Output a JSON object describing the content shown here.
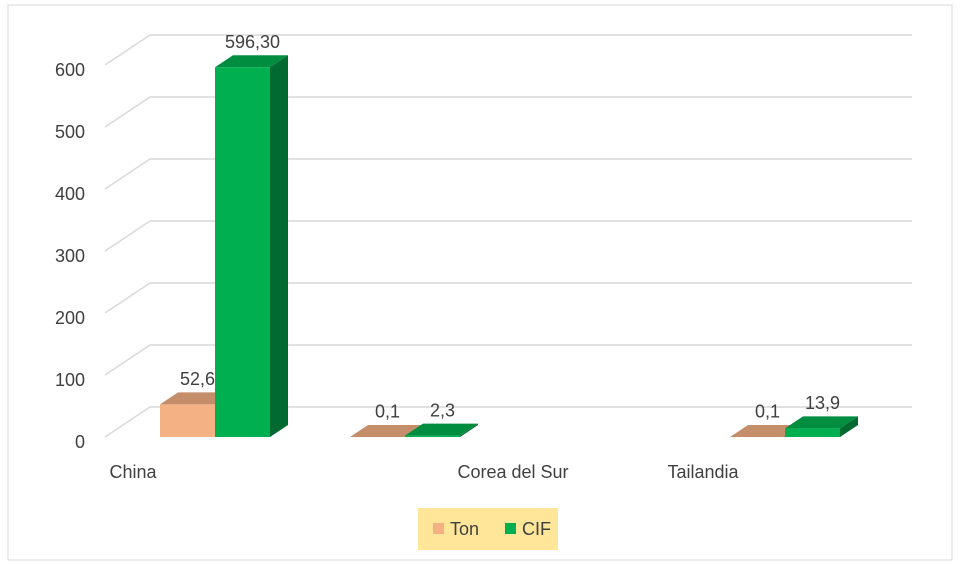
{
  "chart_data": {
    "type": "bar3d",
    "categories": [
      "China",
      null,
      "Corea del Sur",
      "Tailandia"
    ],
    "series": [
      {
        "name": "Ton",
        "color": "#f4b183",
        "values": [
          52.6,
          0.1,
          null,
          0.1
        ],
        "value_labels": [
          "52,6",
          "0,1",
          null,
          "0,1"
        ]
      },
      {
        "name": "CIF",
        "color": "#00b050",
        "values": [
          596.3,
          2.3,
          null,
          13.9
        ],
        "value_labels": [
          "596,30",
          "2,3",
          null,
          "13,9"
        ]
      }
    ],
    "ylim": [
      0,
      600
    ],
    "yticks": [
      0,
      100,
      200,
      300,
      400,
      500,
      600
    ],
    "grid": true,
    "legend": "bottom"
  }
}
